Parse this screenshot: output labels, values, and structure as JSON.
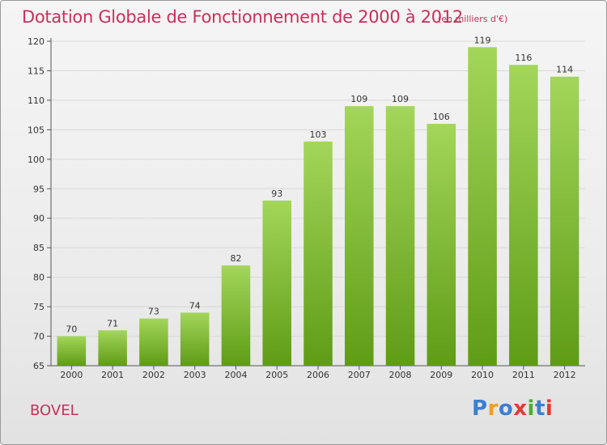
{
  "header": {
    "title": "Dotation Globale de Fonctionnement de 2000 à 2012",
    "unit": "(en milliers d'€)"
  },
  "footer": {
    "commune": "BOVEL",
    "logo_text": "Proxiti"
  },
  "colors": {
    "title": "#c8305a",
    "bar_top": "#a3d65a",
    "bar_bottom": "#5f9c16",
    "grid": "#d8d8d8",
    "logo": [
      "#3b7fd0",
      "#f0a020",
      "#3b7fd0",
      "#e23a3a",
      "#4caf2a",
      "#3b7fd0",
      "#e23a3a"
    ]
  },
  "chart_data": {
    "type": "bar",
    "title": "Dotation Globale de Fonctionnement de 2000 à 2012",
    "subtitle": "(en milliers d'€)",
    "categories": [
      "2000",
      "2001",
      "2002",
      "2003",
      "2004",
      "2005",
      "2006",
      "2007",
      "2008",
      "2009",
      "2010",
      "2011",
      "2012"
    ],
    "values": [
      70,
      71,
      73,
      74,
      82,
      93,
      103,
      109,
      109,
      106,
      119,
      116,
      114
    ],
    "data_labels": [
      "70",
      "71",
      "73",
      "74",
      "82",
      "93",
      "103",
      "109",
      "109",
      "106",
      "119",
      "116",
      "114"
    ],
    "y_ticks": [
      "65",
      "70",
      "75",
      "80",
      "85",
      "90",
      "95",
      "100",
      "105",
      "110",
      "115",
      "120"
    ],
    "ylim": [
      65,
      120
    ],
    "xlabel": "",
    "ylabel": "",
    "grid": true
  }
}
